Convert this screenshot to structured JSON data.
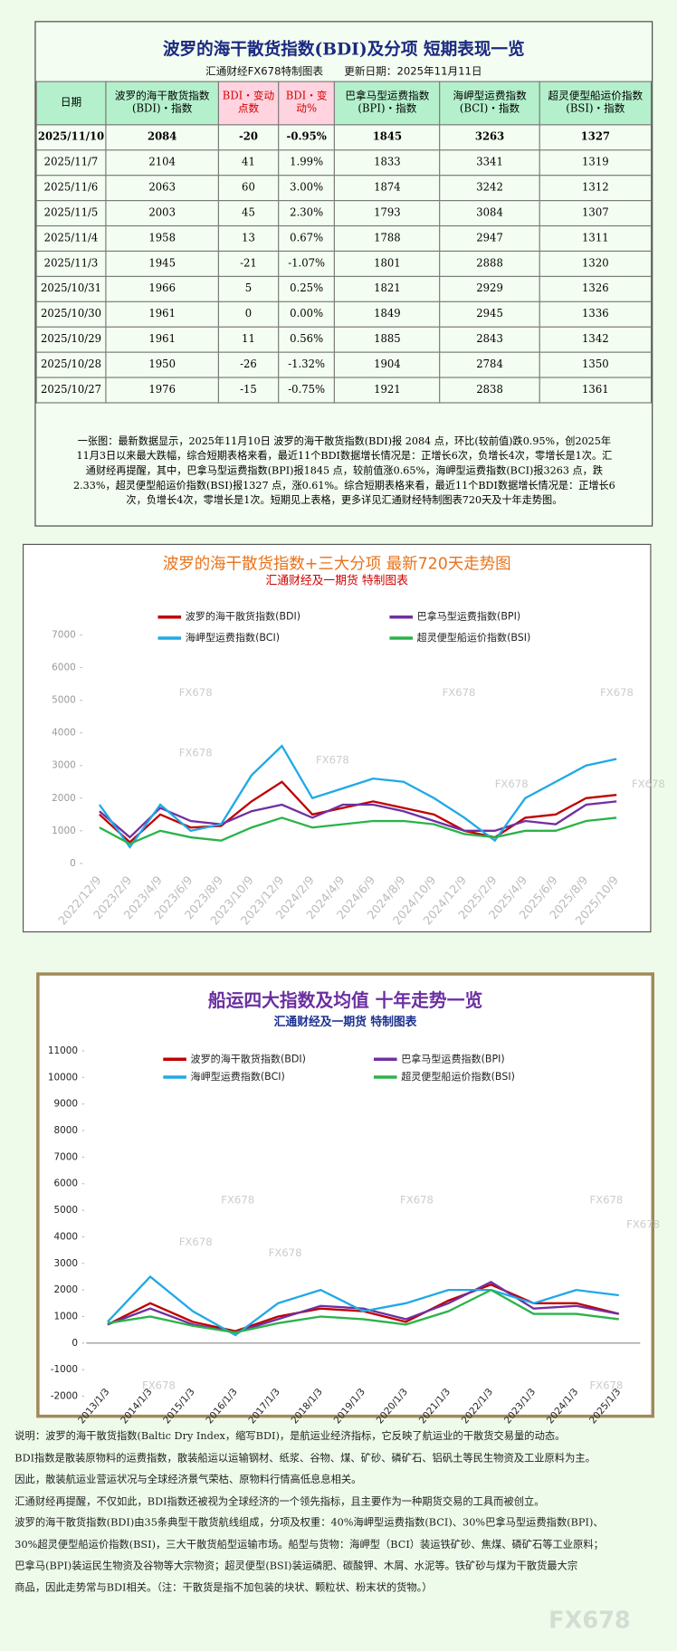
{
  "table": {
    "title": "波罗的海干散货指数(BDI)及分项  短期表现一览",
    "subtitle": "汇通财经FX678特制图表　　更新日期：2025年11月11日",
    "columns": [
      "日期",
      "波罗的海干散货指数(BDI)・指数",
      "BDI・变动点数",
      "BDI・变动%",
      "巴拿马型运费指数(BPI)・指数",
      "海岬型运费指数(BCI)・指数",
      "超灵便型船运价指数(BSI)・指数"
    ],
    "rows": [
      [
        "2025/11/10",
        "2084",
        "-20",
        "-0.95%",
        "1845",
        "3263",
        "1327"
      ],
      [
        "2025/11/7",
        "2104",
        "41",
        "1.99%",
        "1833",
        "3341",
        "1319"
      ],
      [
        "2025/11/6",
        "2063",
        "60",
        "3.00%",
        "1874",
        "3242",
        "1312"
      ],
      [
        "2025/11/5",
        "2003",
        "45",
        "2.30%",
        "1793",
        "3084",
        "1307"
      ],
      [
        "2025/11/4",
        "1958",
        "13",
        "0.67%",
        "1788",
        "2947",
        "1311"
      ],
      [
        "2025/11/3",
        "1945",
        "-21",
        "-1.07%",
        "1801",
        "2888",
        "1320"
      ],
      [
        "2025/10/31",
        "1966",
        "5",
        "0.25%",
        "1821",
        "2929",
        "1326"
      ],
      [
        "2025/10/30",
        "1961",
        "0",
        "0.00%",
        "1849",
        "2945",
        "1336"
      ],
      [
        "2025/10/29",
        "1961",
        "11",
        "0.56%",
        "1885",
        "2843",
        "1342"
      ],
      [
        "2025/10/28",
        "1950",
        "-26",
        "-1.32%",
        "1904",
        "2784",
        "1350"
      ],
      [
        "2025/10/27",
        "1976",
        "-15",
        "-0.75%",
        "1921",
        "2838",
        "1361"
      ]
    ],
    "summary": [
      "一张图：最新数据显示，2025年11月10日 波罗的海干散货指数(BDI)报 2084 点，环比(较前值)跌0.95%，创2025年",
      "11月3日以来最大跌幅，综合短期表格来看，最近11个BDI数据增长情况是：正增长6次，负增长4次，零增长是1次。汇",
      "通财经再提醒，其中，巴拿马型运费指数(BPI)报1845 点，较前值涨0.65%，海岬型运费指数(BCI)报3263 点，跌",
      "2.33%，超灵便型船运价指数(BSI)报1327 点，涨0.61%。综合短期表格来看，最近11个BDI数据增长情况是：正增长6",
      "次，负增长4次，零增长是1次。短期见上表格，更多详见汇通财经特制图表720天及十年走势图。"
    ]
  },
  "chart_data": [
    {
      "type": "line",
      "title": "波罗的海干散货指数+三大分项  最新720天走势图",
      "subtitle": "汇通财经及一期货  特制图表",
      "categories": [
        "2022/12/9",
        "2023/2/9",
        "2023/4/9",
        "2023/6/9",
        "2023/8/9",
        "2023/10/9",
        "2023/12/9",
        "2024/2/9",
        "2024/4/9",
        "2024/6/9",
        "2024/8/9",
        "2024/10/9",
        "2024/12/9",
        "2025/2/9",
        "2025/4/9",
        "2025/6/9",
        "2025/8/9",
        "2025/10/9"
      ],
      "series": [
        {
          "name": "波罗的海干散货指数(BDI)",
          "color": "#c00000",
          "values": [
            1500,
            650,
            1500,
            1100,
            1150,
            1900,
            2500,
            1500,
            1700,
            1900,
            1700,
            1500,
            1000,
            800,
            1400,
            1500,
            2000,
            2100
          ]
        },
        {
          "name": "巴拿马型运费指数(BPI)",
          "color": "#7030a0",
          "values": [
            1600,
            800,
            1700,
            1300,
            1200,
            1600,
            1800,
            1400,
            1800,
            1800,
            1600,
            1300,
            1000,
            1000,
            1300,
            1200,
            1800,
            1900
          ]
        },
        {
          "name": "海岬型运费指数(BCI)",
          "color": "#1fa9e6",
          "values": [
            1800,
            500,
            1800,
            1000,
            1200,
            2700,
            3600,
            2000,
            2300,
            2600,
            2500,
            2000,
            1400,
            700,
            2000,
            2500,
            3000,
            3200
          ]
        },
        {
          "name": "超灵便型船运价指数(BSI)",
          "color": "#2bb34a",
          "values": [
            1100,
            600,
            1000,
            800,
            700,
            1100,
            1400,
            1100,
            1200,
            1300,
            1300,
            1200,
            900,
            800,
            1000,
            1000,
            1300,
            1400
          ]
        }
      ],
      "ylim": [
        0,
        7000
      ],
      "yticks": [
        0,
        1000,
        2000,
        3000,
        4000,
        5000,
        6000,
        7000
      ],
      "grid": false
    },
    {
      "type": "line",
      "title": "船运四大指数及均值 十年走势一览",
      "subtitle": "汇通财经及一期货 特制图表",
      "categories": [
        "2013/1/3",
        "2014/1/3",
        "2015/1/3",
        "2016/1/3",
        "2017/1/3",
        "2018/1/3",
        "2019/1/3",
        "2020/1/3",
        "2021/1/3",
        "2022/1/3",
        "2023/1/3",
        "2024/1/3",
        "2025/1/3"
      ],
      "series": [
        {
          "name": "波罗的海干散货指数(BDI)",
          "color": "#c00000",
          "values": [
            700,
            1500,
            800,
            450,
            1000,
            1300,
            1200,
            800,
            1600,
            2200,
            1500,
            1500,
            1100
          ]
        },
        {
          "name": "巴拿马型运费指数(BPI)",
          "color": "#7030a0",
          "values": [
            700,
            1300,
            700,
            400,
            900,
            1400,
            1300,
            900,
            1500,
            2300,
            1300,
            1400,
            1100
          ]
        },
        {
          "name": "海岬型运费指数(BCI)",
          "color": "#1fa9e6",
          "values": [
            800,
            2500,
            1200,
            300,
            1500,
            2000,
            1200,
            1500,
            2000,
            2000,
            1500,
            2000,
            1800
          ]
        },
        {
          "name": "超灵便型船运价指数(BSI)",
          "color": "#2bb34a",
          "values": [
            750,
            1000,
            650,
            400,
            750,
            1000,
            900,
            700,
            1200,
            2000,
            1100,
            1100,
            900
          ]
        }
      ],
      "ylim": [
        -2000,
        11000
      ],
      "yticks": [
        -2000,
        -1000,
        0,
        1000,
        2000,
        3000,
        4000,
        5000,
        6000,
        7000,
        8000,
        9000,
        10000,
        11000
      ],
      "grid": false
    }
  ],
  "note": [
    "说明：波罗的海干散货指数(Baltic Dry Index，缩写BDI)，是航运业经济指标，它反映了航运业的干散货交易量的动态。",
    "BDI指数是散装原物料的运费指数，散装船运以运输钢材、纸浆、谷物、煤、矿砂、磷矿石、铝矾土等民生物资及工业原料为主。",
    "因此，散装航运业营运状况与全球经济景气荣枯、原物料行情高低息息相关。",
    "汇通财经再提醒，不仅如此，BDI指数还被视为全球经济的一个领先指标，且主要作为一种期货交易的工具而被创立。",
    "波罗的海干散货指数(BDI)由35条典型干散货航线组成，分项及权重：40%海岬型运费指数(BCI)、30%巴拿马型运费指数(BPI)、",
    "30%超灵便型船运价指数(BSI)，三大干散货船型运输市场。船型与货物：海岬型（BCI）装运铁矿砂、焦煤、磷矿石等工业原料；",
    "巴拿马(BPI)装运民生物资及谷物等大宗物资；超灵便型(BSI)装运磷肥、碳酸钾、木屑、水泥等。铁矿砂与煤为干散货最大宗",
    "商品，因此走势常与BDI相关。（注：干散货是指不加包装的块状、颗粒状、粉末状的货物。）"
  ],
  "watermark": "FX678"
}
